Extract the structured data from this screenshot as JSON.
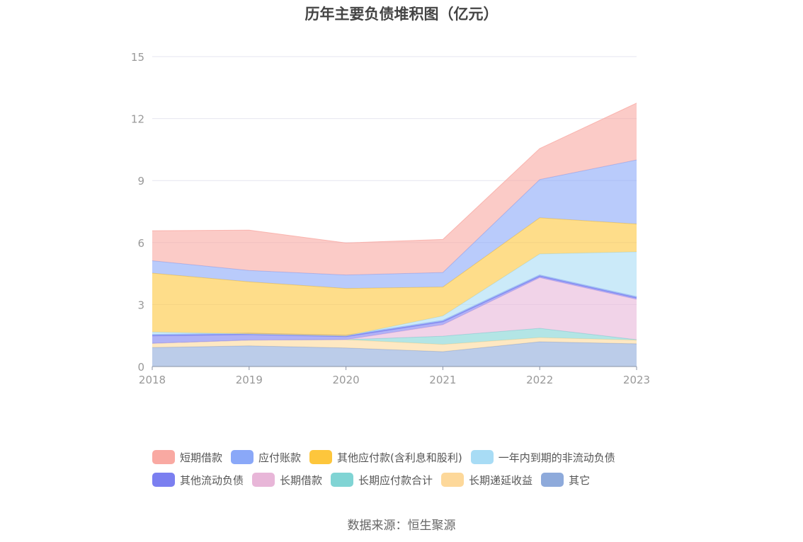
{
  "chart_data": {
    "type": "area",
    "title": "历年主要负债堆积图（亿元）",
    "x": [
      "2018",
      "2019",
      "2020",
      "2021",
      "2022",
      "2023"
    ],
    "ylim": [
      0,
      15
    ],
    "yticks": [
      "0",
      "3",
      "6",
      "9",
      "12",
      "15"
    ],
    "stacked": true,
    "grid": true,
    "legend_position": "bottom",
    "series": [
      {
        "name": "其它",
        "color": "#8eaadb",
        "values": [
          0.92,
          1.0,
          0.9,
          0.72,
          1.2,
          1.1
        ]
      },
      {
        "name": "长期递延收益",
        "color": "#fdd89a",
        "values": [
          0.2,
          0.28,
          0.4,
          0.35,
          0.2,
          0.18
        ]
      },
      {
        "name": "长期应付款合计",
        "color": "#80d4d4",
        "values": [
          0.0,
          0.0,
          0.0,
          0.4,
          0.45,
          0.02
        ]
      },
      {
        "name": "长期借款",
        "color": "#e8b6d8",
        "values": [
          0.0,
          0.0,
          0.0,
          0.55,
          2.45,
          1.95
        ]
      },
      {
        "name": "其他流动负债",
        "color": "#7b7ff0",
        "values": [
          0.4,
          0.3,
          0.18,
          0.18,
          0.1,
          0.1
        ]
      },
      {
        "name": "一年内到期的非流动负债",
        "color": "#a8dcf5",
        "values": [
          0.15,
          0.0,
          0.0,
          0.25,
          1.05,
          2.2
        ]
      },
      {
        "name": "其他应付款(含利息和股利)",
        "color": "#fdc63c",
        "values": [
          2.85,
          2.52,
          2.3,
          1.4,
          1.75,
          1.35
        ]
      },
      {
        "name": "应付账款",
        "color": "#8aa8f8",
        "values": [
          0.6,
          0.55,
          0.65,
          0.7,
          1.85,
          3.1
        ]
      },
      {
        "name": "短期借款",
        "color": "#f9a9a2",
        "values": [
          1.45,
          1.95,
          1.55,
          1.6,
          1.5,
          2.75
        ]
      }
    ],
    "legend_order": [
      "短期借款",
      "应付账款",
      "其他应付款(含利息和股利)",
      "一年内到期的非流动负债",
      "其他流动负债",
      "长期借款",
      "长期应付款合计",
      "长期递延收益",
      "其它"
    ]
  },
  "source_text": "数据来源：恒生聚源"
}
